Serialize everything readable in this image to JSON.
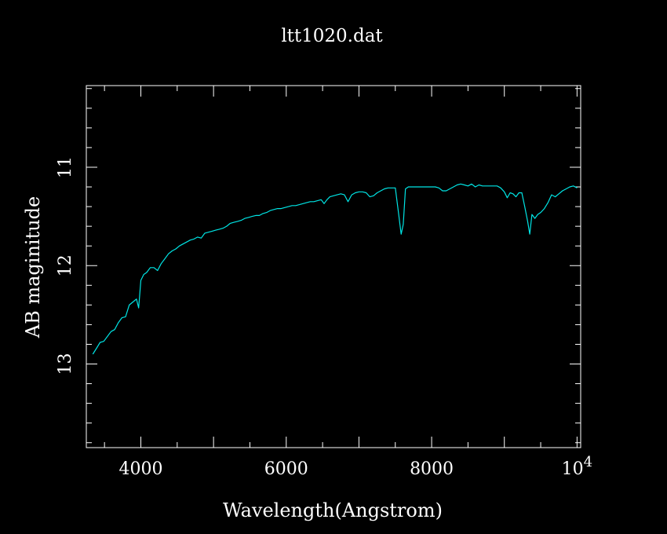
{
  "chart_data": {
    "type": "line",
    "title": "ltt1020.dat",
    "xlabel": "Wavelength(Angstrom)",
    "ylabel": "AB maginitude",
    "xlim": [
      3250,
      10050
    ],
    "ylim": [
      13.85,
      10.17
    ],
    "y_inverted": true,
    "grid": false,
    "x_ticks": [
      {
        "value": 4000,
        "label": "4000"
      },
      {
        "value": 6000,
        "label": "6000"
      },
      {
        "value": 8000,
        "label": "8000"
      },
      {
        "value": 10000,
        "label": "10",
        "exponent": "4"
      }
    ],
    "y_ticks": [
      {
        "value": 11,
        "label": "11"
      },
      {
        "value": 12,
        "label": "12"
      },
      {
        "value": 13,
        "label": "13"
      }
    ],
    "series": [
      {
        "color": "#00e5e5",
        "x": [
          3340,
          3390,
          3440,
          3490,
          3540,
          3590,
          3640,
          3690,
          3740,
          3790,
          3840,
          3890,
          3940,
          3970,
          4000,
          4040,
          4080,
          4130,
          4180,
          4230,
          4280,
          4330,
          4380,
          4430,
          4480,
          4530,
          4580,
          4630,
          4680,
          4730,
          4780,
          4830,
          4880,
          4930,
          4980,
          5030,
          5080,
          5130,
          5180,
          5230,
          5280,
          5330,
          5380,
          5430,
          5480,
          5530,
          5580,
          5630,
          5680,
          5730,
          5780,
          5830,
          5880,
          5930,
          5980,
          6030,
          6080,
          6130,
          6180,
          6230,
          6280,
          6330,
          6380,
          6430,
          6480,
          6520,
          6560,
          6600,
          6650,
          6700,
          6750,
          6800,
          6850,
          6900,
          6950,
          7000,
          7050,
          7100,
          7150,
          7200,
          7250,
          7300,
          7350,
          7400,
          7450,
          7500,
          7550,
          7580,
          7610,
          7640,
          7680,
          7720,
          7760,
          7800,
          7850,
          7900,
          7950,
          8000,
          8050,
          8100,
          8150,
          8200,
          8250,
          8300,
          8350,
          8400,
          8450,
          8500,
          8550,
          8600,
          8650,
          8700,
          8750,
          8800,
          8850,
          8900,
          8950,
          9000,
          9040,
          9080,
          9120,
          9160,
          9200,
          9240,
          9280,
          9320,
          9350,
          9380,
          9420,
          9460,
          9500,
          9550,
          9600,
          9650,
          9700,
          9750,
          9800,
          9850,
          9900,
          9950,
          10000
        ],
        "y": [
          12.9,
          12.84,
          12.78,
          12.77,
          12.72,
          12.67,
          12.65,
          12.58,
          12.53,
          12.52,
          12.4,
          12.37,
          12.34,
          12.43,
          12.15,
          12.09,
          12.07,
          12.02,
          12.02,
          12.05,
          11.98,
          11.93,
          11.88,
          11.85,
          11.83,
          11.8,
          11.78,
          11.76,
          11.74,
          11.73,
          11.71,
          11.72,
          11.67,
          11.66,
          11.65,
          11.64,
          11.63,
          11.62,
          11.6,
          11.57,
          11.56,
          11.55,
          11.54,
          11.52,
          11.51,
          11.5,
          11.49,
          11.49,
          11.47,
          11.46,
          11.44,
          11.43,
          11.42,
          11.42,
          11.41,
          11.4,
          11.39,
          11.39,
          11.38,
          11.37,
          11.36,
          11.35,
          11.35,
          11.34,
          11.33,
          11.37,
          11.33,
          11.3,
          11.29,
          11.28,
          11.27,
          11.28,
          11.35,
          11.28,
          11.26,
          11.25,
          11.25,
          11.26,
          11.3,
          11.29,
          11.26,
          11.24,
          11.22,
          11.21,
          11.21,
          11.21,
          11.5,
          11.68,
          11.58,
          11.22,
          11.2,
          11.2,
          11.2,
          11.2,
          11.2,
          11.2,
          11.2,
          11.2,
          11.2,
          11.21,
          11.24,
          11.24,
          11.22,
          11.2,
          11.18,
          11.17,
          11.18,
          11.19,
          11.17,
          11.2,
          11.18,
          11.19,
          11.19,
          11.19,
          11.19,
          11.19,
          11.21,
          11.25,
          11.31,
          11.26,
          11.27,
          11.3,
          11.26,
          11.26,
          11.4,
          11.55,
          11.68,
          11.48,
          11.52,
          11.48,
          11.46,
          11.42,
          11.36,
          11.28,
          11.3,
          11.27,
          11.24,
          11.22,
          11.2,
          11.19,
          11.21
        ]
      }
    ]
  }
}
